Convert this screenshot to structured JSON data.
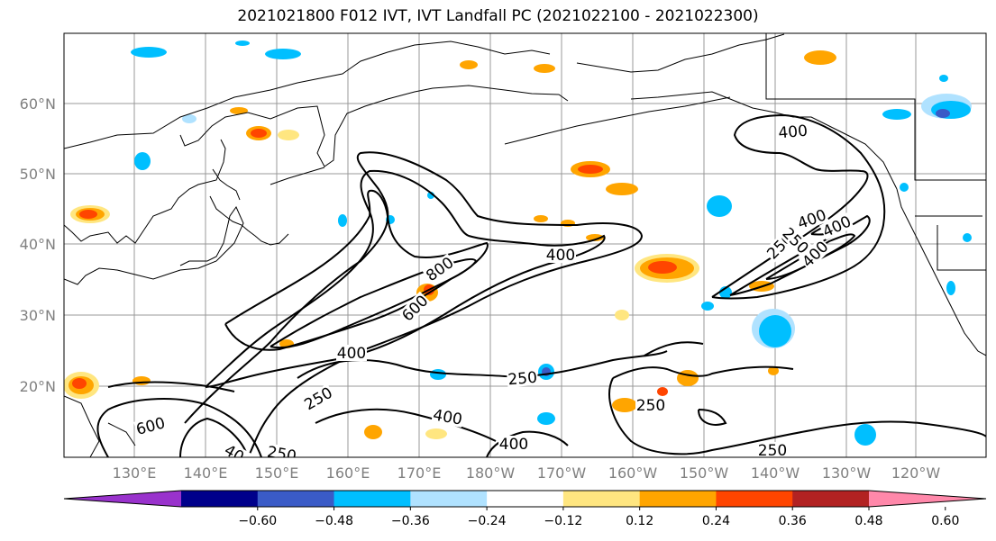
{
  "title": "2021021800 F012 IVT, IVT Landfall PC (2021022100 - 2021022300)",
  "map": {
    "lat_ticks": [
      "60°N",
      "50°N",
      "40°N",
      "30°N",
      "20°N"
    ],
    "lon_ticks": [
      "130°E",
      "140°E",
      "150°E",
      "160°E",
      "170°E",
      "180°W",
      "170°W",
      "160°W",
      "150°W",
      "140°W",
      "130°W",
      "120°W"
    ],
    "contour_labels": [
      "400",
      "400",
      "400",
      "600",
      "800",
      "400",
      "250",
      "250",
      "400",
      "250",
      "600",
      "40",
      "250",
      "400",
      "250",
      "400",
      "250",
      "250",
      "400"
    ],
    "colors": {
      "contour": "#000000",
      "coast": "#000000",
      "grid": "#999999",
      "tick_label": "#808080"
    }
  },
  "colorbar": {
    "tick_labels": [
      "−0.60",
      "−0.48",
      "−0.36",
      "−0.24",
      "−0.12",
      "0.12",
      "0.24",
      "0.36",
      "0.48",
      "0.60"
    ],
    "colors": [
      "#9932cc",
      "#00008b",
      "#3a5bc7",
      "#00bfff",
      "#b0e2ff",
      "#ffffff",
      "#ffe680",
      "#ffa500",
      "#ff4500",
      "#b22222",
      "#ff88aa"
    ]
  }
}
